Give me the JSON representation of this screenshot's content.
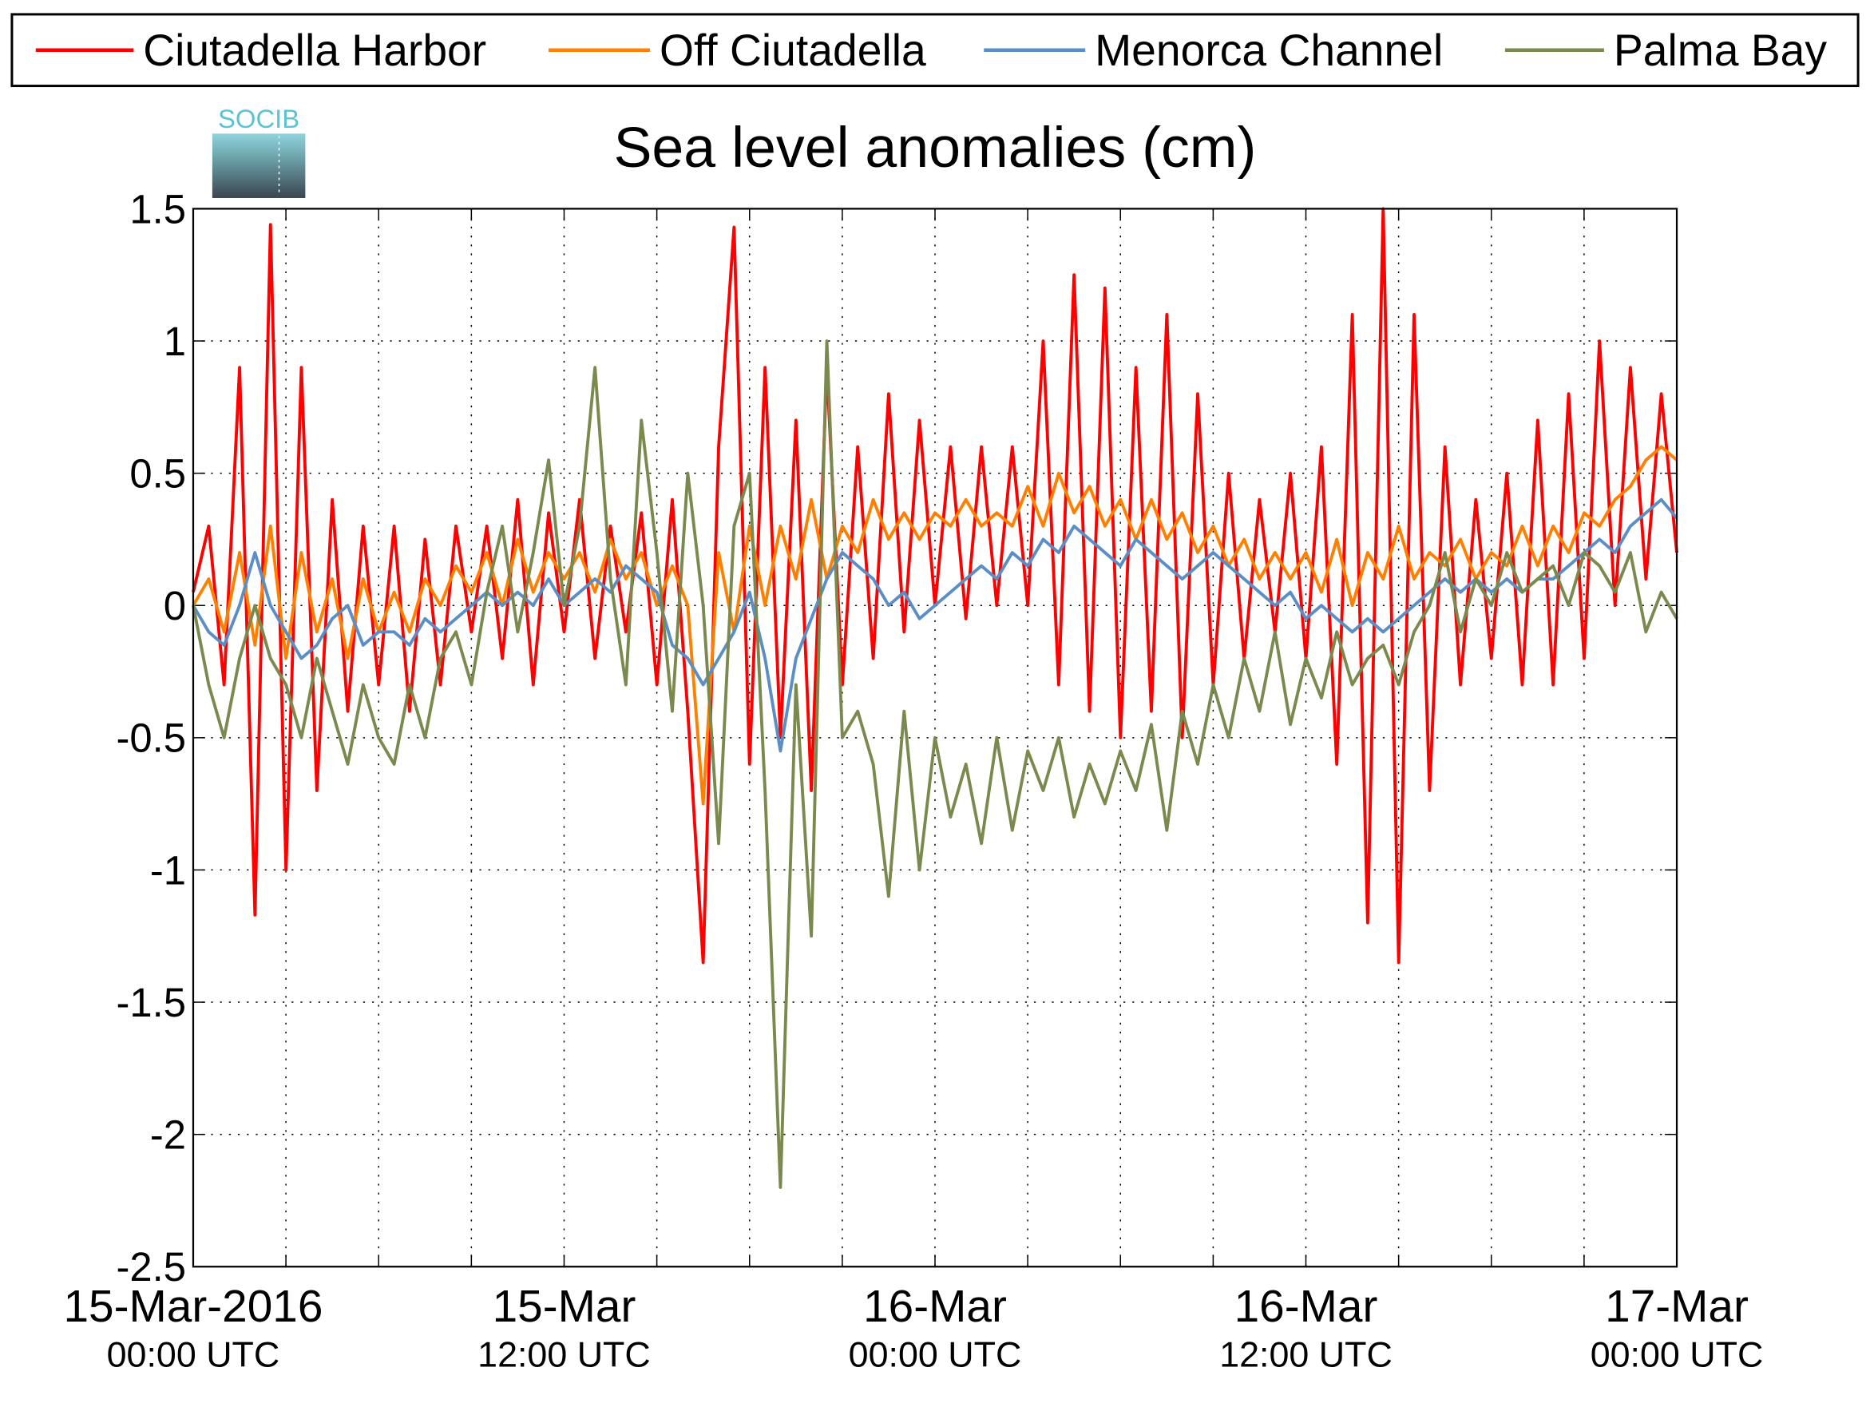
{
  "chart_data": {
    "type": "line",
    "title": "Sea level anomalies (cm)",
    "logo_text": "SOCIB",
    "x": [
      "2016-03-15T00:00",
      "2016-03-15T00:30",
      "2016-03-15T01:00",
      "2016-03-15T01:30",
      "2016-03-15T02:00",
      "2016-03-15T02:30",
      "2016-03-15T03:00",
      "2016-03-15T03:30",
      "2016-03-15T04:00",
      "2016-03-15T04:30",
      "2016-03-15T05:00",
      "2016-03-15T05:30",
      "2016-03-15T06:00",
      "2016-03-15T06:30",
      "2016-03-15T07:00",
      "2016-03-15T07:30",
      "2016-03-15T08:00",
      "2016-03-15T08:30",
      "2016-03-15T09:00",
      "2016-03-15T09:30",
      "2016-03-15T10:00",
      "2016-03-15T10:30",
      "2016-03-15T11:00",
      "2016-03-15T11:30",
      "2016-03-15T12:00",
      "2016-03-15T12:30",
      "2016-03-15T13:00",
      "2016-03-15T13:30",
      "2016-03-15T14:00",
      "2016-03-15T14:30",
      "2016-03-15T15:00",
      "2016-03-15T15:30",
      "2016-03-15T16:00",
      "2016-03-15T16:30",
      "2016-03-15T17:00",
      "2016-03-15T17:30",
      "2016-03-15T18:00",
      "2016-03-15T18:30",
      "2016-03-15T19:00",
      "2016-03-15T19:30",
      "2016-03-15T20:00",
      "2016-03-15T20:30",
      "2016-03-15T21:00",
      "2016-03-15T21:30",
      "2016-03-15T22:00",
      "2016-03-15T22:30",
      "2016-03-15T23:00",
      "2016-03-15T23:30",
      "2016-03-16T00:00",
      "2016-03-16T00:30",
      "2016-03-16T01:00",
      "2016-03-16T01:30",
      "2016-03-16T02:00",
      "2016-03-16T02:30",
      "2016-03-16T03:00",
      "2016-03-16T03:30",
      "2016-03-16T04:00",
      "2016-03-16T04:30",
      "2016-03-16T05:00",
      "2016-03-16T05:30",
      "2016-03-16T06:00",
      "2016-03-16T06:30",
      "2016-03-16T07:00",
      "2016-03-16T07:30",
      "2016-03-16T08:00",
      "2016-03-16T08:30",
      "2016-03-16T09:00",
      "2016-03-16T09:30",
      "2016-03-16T10:00",
      "2016-03-16T10:30",
      "2016-03-16T11:00",
      "2016-03-16T11:30",
      "2016-03-16T12:00",
      "2016-03-16T12:30",
      "2016-03-16T13:00",
      "2016-03-16T13:30",
      "2016-03-16T14:00",
      "2016-03-16T14:30",
      "2016-03-16T15:00",
      "2016-03-16T15:30",
      "2016-03-16T16:00",
      "2016-03-16T16:30",
      "2016-03-16T17:00",
      "2016-03-16T17:30",
      "2016-03-16T18:00",
      "2016-03-16T18:30",
      "2016-03-16T19:00",
      "2016-03-16T19:30",
      "2016-03-16T20:00",
      "2016-03-16T20:30",
      "2016-03-16T21:00",
      "2016-03-16T21:30",
      "2016-03-16T22:00",
      "2016-03-16T22:30",
      "2016-03-16T23:00",
      "2016-03-16T23:30",
      "2016-03-17T00:00"
    ],
    "series": [
      {
        "name": "Ciutadella Harbor",
        "color": "#ff0000",
        "values": [
          0.05,
          0.3,
          -0.3,
          0.9,
          -1.17,
          1.44,
          -1.0,
          0.9,
          -0.7,
          0.4,
          -0.4,
          0.3,
          -0.3,
          0.3,
          -0.4,
          0.25,
          -0.3,
          0.3,
          -0.1,
          0.3,
          -0.2,
          0.4,
          -0.3,
          0.35,
          -0.1,
          0.4,
          -0.2,
          0.3,
          -0.1,
          0.35,
          -0.3,
          0.4,
          -0.4,
          -1.35,
          0.6,
          1.43,
          -0.6,
          0.9,
          -0.5,
          0.7,
          -0.7,
          0.9,
          -0.3,
          0.6,
          -0.2,
          0.8,
          -0.1,
          0.7,
          0.0,
          0.6,
          -0.05,
          0.6,
          0.0,
          0.6,
          0.0,
          1.0,
          -0.3,
          1.25,
          -0.4,
          1.2,
          -0.5,
          0.9,
          -0.4,
          1.1,
          -0.5,
          0.8,
          -0.3,
          0.5,
          -0.2,
          0.4,
          -0.1,
          0.5,
          -0.2,
          0.6,
          -0.6,
          1.1,
          -1.2,
          1.5,
          -1.35,
          1.1,
          -0.7,
          0.6,
          -0.3,
          0.4,
          -0.2,
          0.5,
          -0.3,
          0.7,
          -0.3,
          0.8,
          -0.2,
          1.0,
          0.0,
          0.9,
          0.1,
          0.8,
          0.2
        ]
      },
      {
        "name": "Off Ciutadella",
        "color": "#ff8000",
        "values": [
          0.0,
          0.1,
          -0.1,
          0.2,
          -0.15,
          0.3,
          -0.2,
          0.2,
          -0.1,
          0.1,
          -0.2,
          0.1,
          -0.1,
          0.05,
          -0.1,
          0.1,
          0.0,
          0.15,
          0.05,
          0.2,
          0.0,
          0.25,
          0.05,
          0.2,
          0.1,
          0.2,
          0.05,
          0.25,
          0.1,
          0.2,
          0.0,
          0.15,
          0.0,
          -0.75,
          0.2,
          -0.1,
          0.3,
          0.0,
          0.3,
          0.1,
          0.4,
          0.1,
          0.3,
          0.2,
          0.4,
          0.25,
          0.35,
          0.25,
          0.35,
          0.3,
          0.4,
          0.3,
          0.35,
          0.3,
          0.45,
          0.3,
          0.5,
          0.35,
          0.45,
          0.3,
          0.4,
          0.25,
          0.4,
          0.25,
          0.35,
          0.2,
          0.3,
          0.15,
          0.25,
          0.1,
          0.2,
          0.1,
          0.2,
          0.05,
          0.25,
          0.0,
          0.2,
          0.1,
          0.3,
          0.1,
          0.2,
          0.15,
          0.25,
          0.1,
          0.2,
          0.15,
          0.3,
          0.15,
          0.3,
          0.2,
          0.35,
          0.3,
          0.4,
          0.45,
          0.55,
          0.6,
          0.55
        ]
      },
      {
        "name": "Menorca Channel",
        "color": "#5b8ec4",
        "values": [
          0.0,
          -0.1,
          -0.15,
          0.0,
          0.2,
          0.0,
          -0.1,
          -0.2,
          -0.15,
          -0.05,
          0.0,
          -0.15,
          -0.1,
          -0.1,
          -0.15,
          -0.05,
          -0.1,
          -0.05,
          0.0,
          0.05,
          0.0,
          0.05,
          0.0,
          0.1,
          0.0,
          0.05,
          0.1,
          0.05,
          0.15,
          0.1,
          0.05,
          -0.15,
          -0.2,
          -0.3,
          -0.2,
          -0.1,
          0.05,
          -0.2,
          -0.55,
          -0.2,
          -0.05,
          0.1,
          0.2,
          0.15,
          0.1,
          0.0,
          0.05,
          -0.05,
          0.0,
          0.05,
          0.1,
          0.15,
          0.1,
          0.2,
          0.15,
          0.25,
          0.2,
          0.3,
          0.25,
          0.2,
          0.15,
          0.25,
          0.2,
          0.15,
          0.1,
          0.15,
          0.2,
          0.15,
          0.1,
          0.05,
          0.0,
          0.05,
          -0.05,
          0.0,
          -0.05,
          -0.1,
          -0.05,
          -0.1,
          -0.05,
          0.0,
          0.05,
          0.1,
          0.05,
          0.1,
          0.05,
          0.1,
          0.05,
          0.1,
          0.1,
          0.15,
          0.2,
          0.25,
          0.2,
          0.3,
          0.35,
          0.4,
          0.33
        ]
      },
      {
        "name": "Palma Bay",
        "color": "#7a8a4e",
        "values": [
          0.0,
          -0.3,
          -0.5,
          -0.2,
          0.0,
          -0.2,
          -0.3,
          -0.5,
          -0.2,
          -0.4,
          -0.6,
          -0.3,
          -0.5,
          -0.6,
          -0.3,
          -0.5,
          -0.2,
          -0.1,
          -0.3,
          0.05,
          0.3,
          -0.1,
          0.2,
          0.55,
          0.0,
          0.3,
          0.9,
          0.1,
          -0.3,
          0.7,
          0.2,
          -0.4,
          0.5,
          0.0,
          -0.9,
          0.3,
          0.5,
          -0.7,
          -2.2,
          -0.3,
          -1.25,
          1.0,
          -0.5,
          -0.4,
          -0.6,
          -1.1,
          -0.4,
          -1.0,
          -0.5,
          -0.8,
          -0.6,
          -0.9,
          -0.5,
          -0.85,
          -0.55,
          -0.7,
          -0.5,
          -0.8,
          -0.6,
          -0.75,
          -0.55,
          -0.7,
          -0.45,
          -0.85,
          -0.4,
          -0.6,
          -0.3,
          -0.5,
          -0.2,
          -0.4,
          -0.1,
          -0.45,
          -0.2,
          -0.35,
          -0.1,
          -0.3,
          -0.2,
          -0.15,
          -0.3,
          -0.1,
          0.0,
          0.2,
          -0.1,
          0.1,
          0.0,
          0.2,
          0.05,
          0.1,
          0.15,
          0.0,
          0.2,
          0.15,
          0.05,
          0.2,
          -0.1,
          0.05,
          -0.05
        ]
      }
    ],
    "xlim": [
      "2016-03-15T00:00",
      "2016-03-17T00:00"
    ],
    "xticks": [
      {
        "value": "2016-03-15T00:00",
        "label": [
          "15-Mar-2016",
          "00:00 UTC"
        ]
      },
      {
        "value": "2016-03-15T12:00",
        "label": [
          "15-Mar",
          "12:00 UTC"
        ]
      },
      {
        "value": "2016-03-16T00:00",
        "label": [
          "16-Mar",
          "00:00 UTC"
        ]
      },
      {
        "value": "2016-03-16T12:00",
        "label": [
          "16-Mar",
          "12:00 UTC"
        ]
      },
      {
        "value": "2016-03-17T00:00",
        "label": [
          "17-Mar",
          "00:00 UTC"
        ]
      }
    ],
    "xminor_ticks": [
      "2016-03-15T03:00",
      "2016-03-15T06:00",
      "2016-03-15T09:00",
      "2016-03-15T15:00",
      "2016-03-15T18:00",
      "2016-03-15T21:00",
      "2016-03-16T03:00",
      "2016-03-16T06:00",
      "2016-03-16T09:00",
      "2016-03-16T15:00",
      "2016-03-16T18:00",
      "2016-03-16T21:00"
    ],
    "ylim": [
      -2.5,
      1.5
    ],
    "yticks": [
      -2.5,
      -2,
      -1.5,
      -1,
      -0.5,
      0,
      0.5,
      1,
      1.5
    ],
    "grid": true,
    "legend": "top"
  }
}
